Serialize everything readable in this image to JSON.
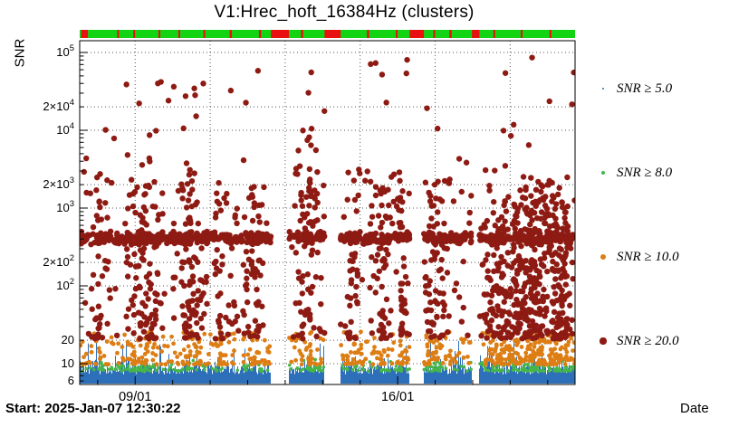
{
  "title": "V1:Hrec_hoft_16384Hz (clusters)",
  "y_axis": {
    "title": "SNR"
  },
  "x_axis": {
    "title": "Date"
  },
  "footer": {
    "start": "Start: 2025-Jan-07 12:30:22"
  },
  "legend": {
    "items": [
      {
        "label": "SNR ≥ 5.0",
        "color": "#2e6fba",
        "marker_r": 1.2
      },
      {
        "label": "SNR ≥ 8.0",
        "color": "#45b64a",
        "marker_r": 2.4
      },
      {
        "label": "SNR ≥ 10.0",
        "color": "#dd7e14",
        "marker_r": 3.0
      },
      {
        "label": "SNR ≥ 20.0",
        "color": "#8e1b13",
        "marker_r": 3.6
      }
    ]
  },
  "chart_data": {
    "type": "scatter",
    "title": "V1:Hrec_hoft_16384Hz (clusters)",
    "xlabel": "Date",
    "ylabel": "SNR",
    "x_start_label": "Start: 2025-Jan-07 12:30:22",
    "t0": 7.521,
    "t1": 20.73,
    "x_tick_labels": [
      {
        "day": 9,
        "label": "09/01"
      },
      {
        "day": 16,
        "label": "16/01"
      }
    ],
    "y_scale": "log",
    "y_range": [
      5.4,
      140000
    ],
    "y_ticks": [
      {
        "value": 100000,
        "mantissa": "10",
        "exp": "5"
      },
      {
        "value": 20000,
        "mantissa": "2×10",
        "exp": "4"
      },
      {
        "value": 10000,
        "mantissa": "10",
        "exp": "4"
      },
      {
        "value": 2000,
        "mantissa": "2×10",
        "exp": "3"
      },
      {
        "value": 1000,
        "mantissa": "10",
        "exp": "3"
      },
      {
        "value": 200,
        "mantissa": "2×10",
        "exp": "2"
      },
      {
        "value": 100,
        "mantissa": "10",
        "exp": "2"
      },
      {
        "value": 20,
        "mantissa": "20",
        "exp": ""
      },
      {
        "value": 10,
        "mantissa": "10",
        "exp": ""
      },
      {
        "value": 6,
        "mantissa": "6",
        "exp": ""
      }
    ],
    "grid": {
      "x_days": [
        9,
        11,
        13,
        15,
        17,
        19
      ],
      "y_values": [
        10,
        20,
        100,
        200,
        1000,
        2000,
        10000,
        20000,
        100000
      ]
    },
    "status_strip": {
      "ok_color": "#12d412",
      "alarm_color": "#e81010",
      "outages_days": [
        [
          7.56,
          7.74
        ],
        [
          8.52,
          8.57
        ],
        [
          8.95,
          9.0
        ],
        [
          9.62,
          9.67
        ],
        [
          10.15,
          10.2
        ],
        [
          10.82,
          10.87
        ],
        [
          11.52,
          11.58
        ],
        [
          12.3,
          12.36
        ],
        [
          12.62,
          13.1
        ],
        [
          13.42,
          13.48
        ],
        [
          14.05,
          14.48
        ],
        [
          15.18,
          15.24
        ],
        [
          15.95,
          16.0
        ],
        [
          16.32,
          16.7
        ],
        [
          16.95,
          17.0
        ],
        [
          17.38,
          17.44
        ],
        [
          17.98,
          18.18
        ],
        [
          18.55,
          18.6
        ],
        [
          19.28,
          19.33
        ],
        [
          20.05,
          20.1
        ]
      ]
    },
    "data_gaps": [
      [
        12.62,
        13.1
      ],
      [
        14.05,
        14.48
      ],
      [
        16.32,
        16.7
      ],
      [
        17.98,
        18.18
      ]
    ],
    "seed": 20250107,
    "series": [
      {
        "name": "SNR ≥ 5.0",
        "color": "#2e6fba",
        "style": "dense-strip",
        "snr_range": [
          5.4,
          22
        ],
        "description": "continuous dense band of low-SNR triggers from axis bottom up to SNR ≈ 10, with spikes to ≈ 20"
      },
      {
        "name": "SNR ≥ 8.0",
        "color": "#45b64a",
        "r": 1.8,
        "count": 320,
        "snr_range": [
          8,
          11.5
        ],
        "description": "thin sprinkle of points just above the blue band"
      },
      {
        "name": "SNR ≥ 10.0",
        "color": "#dd7e14",
        "r": 2.4,
        "count": 640,
        "snr_range": [
          10,
          26
        ],
        "description": "band between SNR 10 and 20, denser during burst periods and after 16/01"
      },
      {
        "name": "SNR ≥ 20.0",
        "color": "#8e1b13",
        "r": 3.2,
        "band": {
          "count": 680,
          "log_center": 2.615,
          "log_spread": 0.09,
          "description": "dense horizontal band at SNR ≈ 350–500 across full range"
        },
        "clusters": [
          {
            "day": 8.05,
            "width": 0.35,
            "count": 35,
            "log_max": 3.5
          },
          {
            "day": 9.25,
            "width": 0.6,
            "count": 90,
            "log_max": 3.45
          },
          {
            "day": 10.45,
            "width": 0.5,
            "count": 80,
            "log_max": 3.6
          },
          {
            "day": 11.3,
            "width": 0.25,
            "count": 30,
            "log_max": 3.2
          },
          {
            "day": 12.15,
            "width": 0.35,
            "count": 45,
            "log_max": 3.3
          },
          {
            "day": 13.65,
            "width": 0.4,
            "count": 65,
            "log_max": 4.0
          },
          {
            "day": 14.8,
            "width": 0.25,
            "count": 30,
            "log_max": 3.2
          },
          {
            "day": 15.55,
            "width": 0.35,
            "count": 50,
            "log_max": 3.3
          },
          {
            "day": 16.1,
            "width": 0.22,
            "count": 35,
            "log_max": 3.5
          },
          {
            "day": 17.0,
            "width": 0.5,
            "count": 75,
            "log_max": 3.4
          },
          {
            "day": 18.6,
            "width": 0.5,
            "count": 90,
            "log_max": 3.0
          },
          {
            "day": 19.6,
            "width": 1.0,
            "count": 260,
            "log_max": 3.3
          },
          {
            "day": 20.4,
            "width": 0.35,
            "count": 80,
            "log_max": 3.1
          }
        ],
        "mid": {
          "count": 90,
          "log_range": [
            2.8,
            3.5
          ]
        },
        "low": {
          "count": 110,
          "log_range": [
            1.32,
            2.5
          ]
        },
        "outliers": {
          "count": 60,
          "log_range": [
            3.35,
            4.95
          ],
          "description": "sparse very loud events up to SNR ≈ 10^5"
        }
      }
    ]
  }
}
